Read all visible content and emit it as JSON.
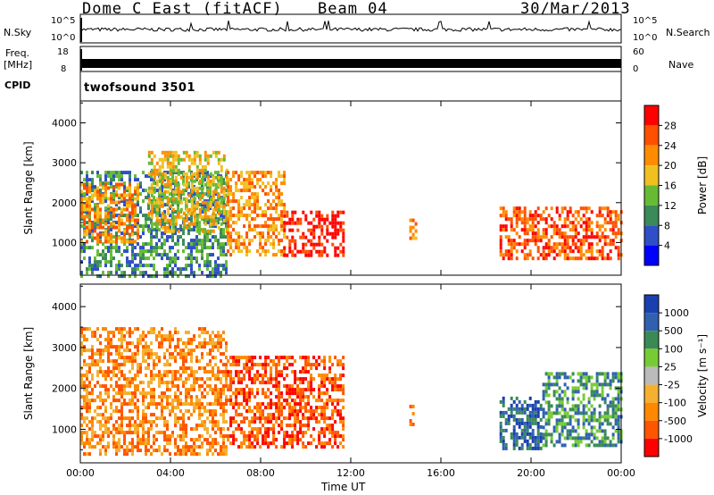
{
  "header": {
    "title": "Dome C East (fitACF)",
    "beam": "Beam 04",
    "date": "30/Mar/2013"
  },
  "top_panels": {
    "nsky_label": "N.Sky",
    "nsearch_label": "N.Search",
    "nsky_ticks": [
      "10^5",
      "10^0"
    ],
    "nsearch_ticks": [
      "10^5",
      "10^0"
    ],
    "freq_label_line1": "Freq.",
    "freq_label_line2": "[MHz]",
    "freq_ticks": [
      "18",
      "8"
    ],
    "nave_label": "Nave",
    "nave_ticks": [
      "60",
      "0"
    ],
    "cpid_label": "CPID",
    "cpid_value": "twofsound 3501"
  },
  "x_axis": {
    "label": "Time UT",
    "ticks": [
      "00:00",
      "04:00",
      "08:00",
      "12:00",
      "16:00",
      "20:00",
      "00:00"
    ]
  },
  "colorbars": {
    "power": {
      "label": "Power [dB]",
      "ticks": [
        "28",
        "24",
        "20",
        "16",
        "12",
        "8",
        "4"
      ],
      "colors": [
        "#0000ff",
        "#2f4fc8",
        "#3a8a5a",
        "#66bb33",
        "#f0c020",
        "#ff8c00",
        "#ff5000",
        "#ff0000"
      ]
    },
    "velocity": {
      "label": "Velocity [m s⁻¹]",
      "ticks": [
        "1000",
        "500",
        "100",
        "25",
        "-25",
        "-100",
        "-500",
        "-1000"
      ],
      "colors": [
        "#ff0000",
        "#ff5500",
        "#ff8800",
        "#f5b030",
        "#bbbbbb",
        "#77cc33",
        "#3a8a55",
        "#3060b0",
        "#1a3fb0"
      ]
    }
  },
  "chart_data": [
    {
      "type": "heatmap",
      "title": "",
      "ylabel": "Slant Range [km]",
      "xlabel": "",
      "xlim_hours": [
        0,
        24
      ],
      "ylim": [
        180,
        4550
      ],
      "yticks": [
        1000,
        2000,
        3000,
        4000
      ],
      "colorbar": "Power [dB]",
      "regions": [
        {
          "t": [
            0.0,
            6.5
          ],
          "range_km": [
            200,
            2800
          ],
          "level": 2
        },
        {
          "t": [
            0.0,
            2.5
          ],
          "range_km": [
            1000,
            2500
          ],
          "level": 5
        },
        {
          "t": [
            3.0,
            6.5
          ],
          "range_km": [
            1300,
            3300
          ],
          "level": 4
        },
        {
          "t": [
            6.5,
            9.0
          ],
          "range_km": [
            700,
            2800
          ],
          "level": 5
        },
        {
          "t": [
            9.0,
            11.7
          ],
          "range_km": [
            700,
            1800
          ],
          "level": 7
        },
        {
          "t": [
            14.6,
            14.9
          ],
          "range_km": [
            1100,
            1600
          ],
          "level": 5
        },
        {
          "t": [
            18.6,
            24.0
          ],
          "range_km": [
            600,
            1900
          ],
          "level": 6
        }
      ]
    },
    {
      "type": "heatmap",
      "title": "",
      "ylabel": "Slant Range [km]",
      "xlabel": "Time UT",
      "xlim_hours": [
        0,
        24
      ],
      "ylim": [
        180,
        4550
      ],
      "yticks": [
        1000,
        2000,
        3000,
        4000
      ],
      "colorbar": "Velocity [m s⁻¹]",
      "regions": [
        {
          "t": [
            0.0,
            6.5
          ],
          "range_km": [
            400,
            3500
          ],
          "level": 2
        },
        {
          "t": [
            6.5,
            11.7
          ],
          "range_km": [
            600,
            2800
          ],
          "level": 1
        },
        {
          "t": [
            14.6,
            14.9
          ],
          "range_km": [
            1100,
            1600
          ],
          "level": 2
        },
        {
          "t": [
            18.6,
            20.5
          ],
          "range_km": [
            500,
            1800
          ],
          "level": 7
        },
        {
          "t": [
            20.5,
            24.0
          ],
          "range_km": [
            600,
            2400
          ],
          "level": 6
        }
      ]
    }
  ]
}
